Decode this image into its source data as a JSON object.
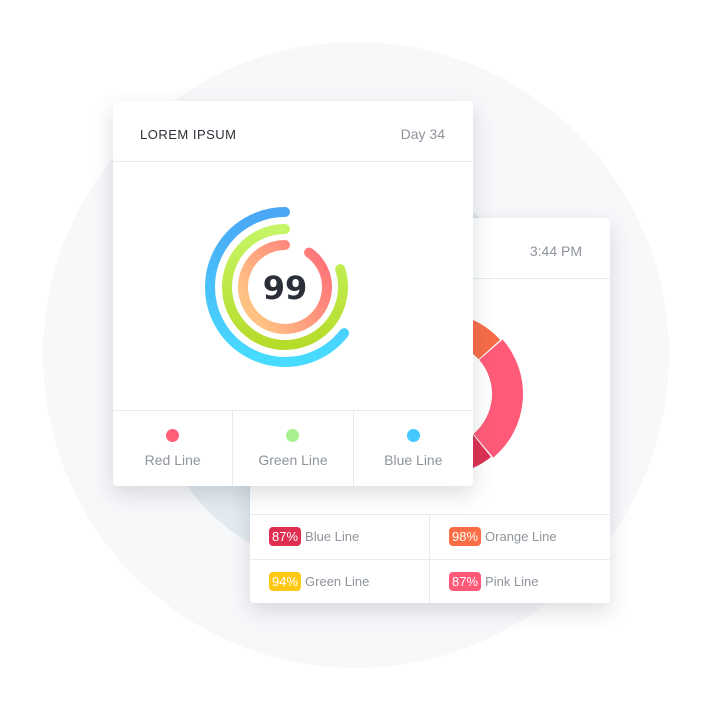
{
  "front_card": {
    "title": "LOREM IPSUM",
    "day": "Day 34",
    "center_value": "99",
    "rings": [
      {
        "name": "Blue Line",
        "color_start": "#4aa6f5",
        "color_end": "#47dcff"
      },
      {
        "name": "Green Line",
        "color_start": "#c5f565",
        "color_end": "#b6dc2a"
      },
      {
        "name": "Red Line",
        "color_start": "#ff6b78",
        "color_end": "#ffc283"
      }
    ],
    "legend": [
      {
        "label": "Red Line",
        "color": "#ff5f77"
      },
      {
        "label": "Green Line",
        "color": "#a8f08d"
      },
      {
        "label": "Blue Line",
        "color": "#45c8ff"
      }
    ]
  },
  "back_card": {
    "time": "3:44 PM",
    "donut_colors": {
      "orange": "#f76c47",
      "pink": "#ff5b78",
      "red": "#de3152"
    },
    "stats": [
      {
        "value": "87%",
        "label": "Blue Line",
        "color": "#de2f50"
      },
      {
        "value": "98%",
        "label": "Orange Line",
        "color": "#fb6d44"
      },
      {
        "value": "94%",
        "label": "Green Line",
        "color": "#ffc814"
      },
      {
        "value": "87%",
        "label": "Pink Line",
        "color": "#ff5977"
      }
    ]
  }
}
